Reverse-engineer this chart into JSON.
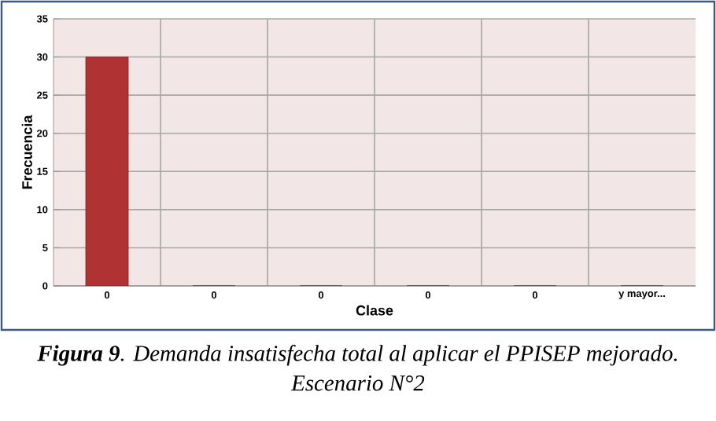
{
  "chart_data": {
    "type": "bar",
    "xlabel": "Clase",
    "ylabel": "Frecuencia",
    "categories": [
      "0",
      "0",
      "0",
      "0",
      "0",
      "y mayor..."
    ],
    "values": [
      30,
      0,
      0,
      0,
      0,
      0
    ],
    "color": "#b03232",
    "ylim": [
      0,
      35
    ],
    "yticks": [
      0,
      5,
      10,
      15,
      20,
      25,
      30,
      35
    ],
    "grid": true,
    "annotations": [
      "**Figura 9**. Demanda insatisfecha total al aplicar el PPISEP mejorado. Escenario N°2"
    ]
  }
}
